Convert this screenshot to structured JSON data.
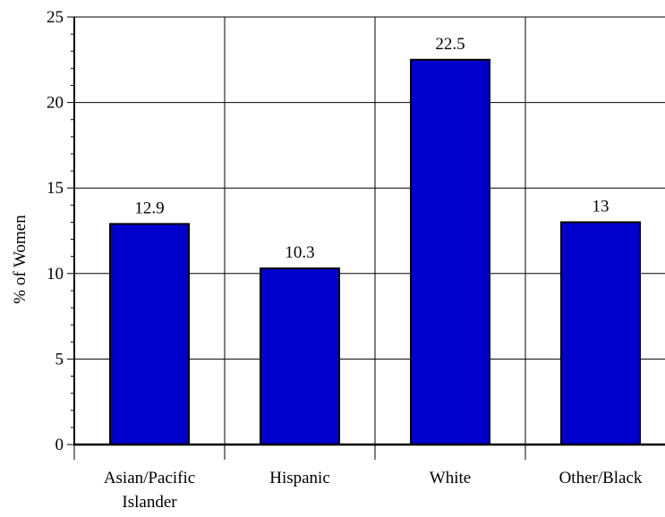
{
  "chart_data": {
    "type": "bar",
    "title": "",
    "xlabel": "",
    "ylabel": "% of Women",
    "ylim": [
      0,
      25
    ],
    "yticks": [
      0,
      5,
      10,
      15,
      20,
      25
    ],
    "grid": true,
    "categories": [
      [
        "Asian/Pacific",
        "Islander"
      ],
      [
        "Hispanic"
      ],
      [
        "White"
      ],
      [
        "Other/Black"
      ]
    ],
    "values": [
      12.9,
      10.3,
      22.5,
      13
    ],
    "data_labels": [
      "12.9",
      "10.3",
      "22.5",
      "13"
    ],
    "bar_color": "#0000CC"
  }
}
